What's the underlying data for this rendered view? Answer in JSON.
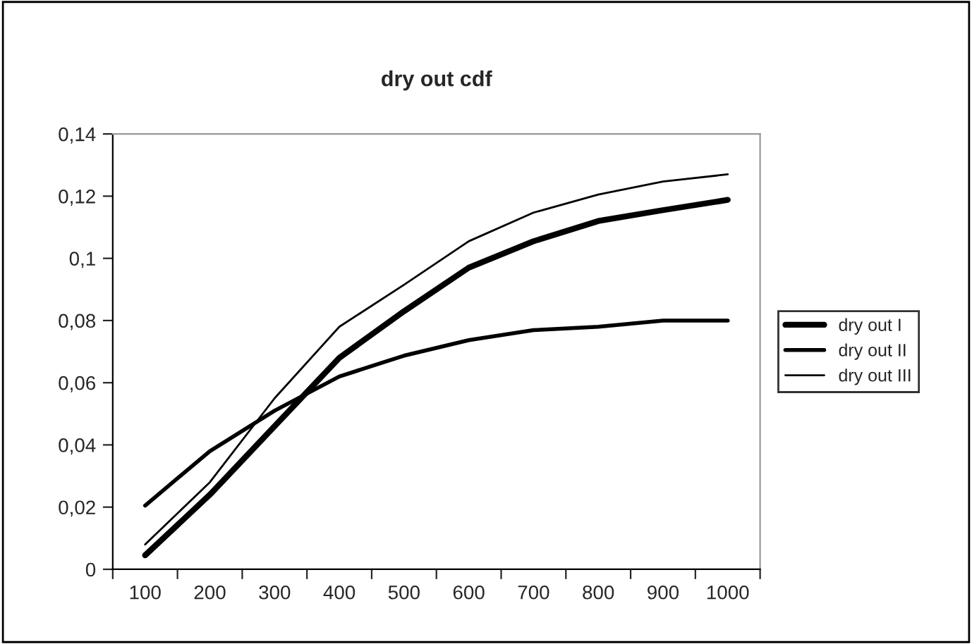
{
  "chart_data": {
    "type": "line",
    "title": "dry out cdf",
    "categories": [
      "100",
      "200",
      "300",
      "400",
      "500",
      "600",
      "700",
      "800",
      "900",
      "1000"
    ],
    "series": [
      {
        "name": "dry out I",
        "color": "#000000",
        "values": [
          0.0045,
          0.024,
          0.046,
          0.068,
          0.083,
          0.097,
          0.1055,
          0.112,
          0.1155,
          0.1188
        ]
      },
      {
        "name": "dry out II",
        "color": "#000000",
        "values": [
          0.0205,
          0.038,
          0.051,
          0.062,
          0.0687,
          0.0737,
          0.0769,
          0.078,
          0.08,
          0.08
        ]
      },
      {
        "name": "dry out III",
        "color": "#000000",
        "values": [
          0.008,
          0.028,
          0.055,
          0.078,
          0.0915,
          0.1055,
          0.1147,
          0.1205,
          0.1247,
          0.127
        ]
      }
    ],
    "ylim": [
      0,
      0.14
    ],
    "yticks": [
      {
        "value": 0,
        "label": "0"
      },
      {
        "value": 0.02,
        "label": "0,02"
      },
      {
        "value": 0.04,
        "label": "0,04"
      },
      {
        "value": 0.06,
        "label": "0,06"
      },
      {
        "value": 0.08,
        "label": "0,08"
      },
      {
        "value": 0.1,
        "label": "0,1"
      },
      {
        "value": 0.12,
        "label": "0,12"
      },
      {
        "value": 0.14,
        "label": "0,14"
      }
    ],
    "grid": false,
    "legend": "right",
    "marker": "none",
    "line_style": "solid"
  }
}
